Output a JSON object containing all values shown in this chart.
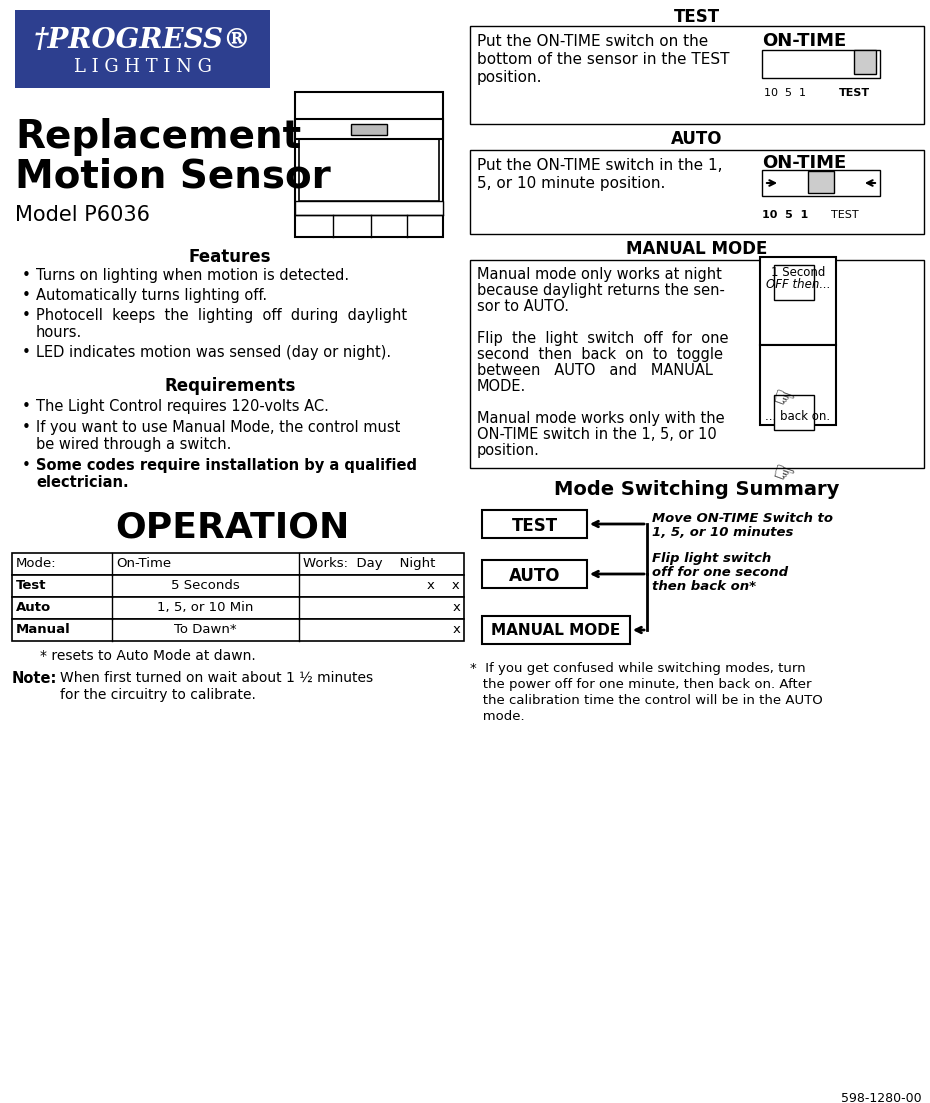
{
  "page_bg": "#ffffff",
  "logo_bg": "#2d3f8f",
  "title_line1": "Replacement",
  "title_line2": "Motion Sensor",
  "model": "Model P6036",
  "features_header": "Features",
  "features": [
    "Turns on lighting when motion is detected.",
    "Automatically turns lighting off.",
    "Photocell  keeps  the  lighting  off  during  daylight\nhours.",
    "LED indicates motion was sensed (day or night)."
  ],
  "requirements_header": "Requirements",
  "requirements": [
    "The Light Control requires 120-volts AC.",
    "If you want to use Manual Mode, the control must\nbe wired through a switch.",
    "Some codes require installation by a qualified\nelectrician."
  ],
  "operation_title": "OPERATION",
  "table_headers": [
    "Mode:",
    "On-Time",
    "Works:  Day    Night"
  ],
  "table_rows": [
    [
      "Test",
      "5 Seconds",
      "x    x"
    ],
    [
      "Auto",
      "1, 5, or 10 Min",
      "x"
    ],
    [
      "Manual",
      "To Dawn*",
      "x"
    ]
  ],
  "table_note1": "* resets to Auto Mode at dawn.",
  "note_label": "Note:",
  "note_text1": "When first turned on wait about 1 ½ minutes",
  "note_text2": "for the circuitry to calibrate.",
  "test_header": "TEST",
  "test_box_text1": "Put the ON-TIME switch on the",
  "test_box_text2": "bottom of the sensor in the TEST",
  "test_box_text3": "position.",
  "auto_header": "AUTO",
  "auto_box_text1": "Put the ON-TIME switch in the 1,",
  "auto_box_text2": "5, or 10 minute position.",
  "ontime_label": "ON-TIME",
  "test_scale_plain": "10  5  1  ",
  "test_scale_bold": "TEST",
  "auto_scale_bold": "10  5  1",
  "auto_scale_plain": "  TEST",
  "manual_header": "MANUAL MODE",
  "manual_text": [
    "Manual mode only works at night",
    "because daylight returns the sen-",
    "sor to AUTO.",
    "",
    "Flip  the  light  switch  off  for  one",
    "second  then  back  on  to  toggle",
    "between   AUTO   and   MANUAL",
    "MODE.",
    "",
    "Manual mode works only with the",
    "ON-TIME switch in the 1, 5, or 10",
    "position."
  ],
  "switch_label1a": "1 Second",
  "switch_label1b": "OFF then...",
  "switch_label2": "... back on.",
  "mode_switch_header": "Mode Switching Summary",
  "mode_box1": "TEST",
  "mode_box2": "AUTO",
  "mode_box3": "MANUAL MODE",
  "mode_arrow1a": "Move ON-TIME Switch to",
  "mode_arrow1b": "1, 5, or 10 minutes",
  "mode_arrow2a": "Flip light switch",
  "mode_arrow2b": "off for one second",
  "mode_arrow2c": "then back on*",
  "footnote": [
    "*  If you get confused while switching modes, turn",
    "   the power off for one minute, then back on. After",
    "   the calibration time the control will be in the AUTO",
    "   mode."
  ],
  "part_number": "598-1280-00"
}
